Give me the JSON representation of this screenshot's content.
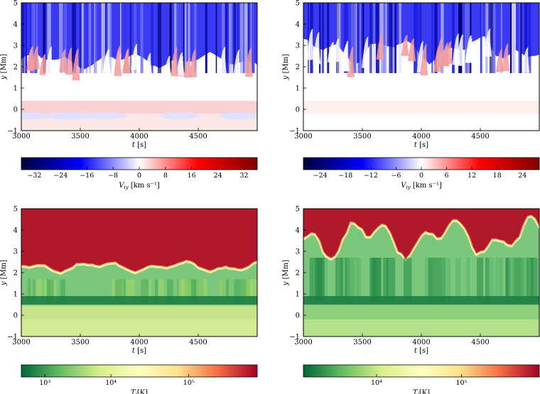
{
  "chart_data": [
    {
      "type": "heatmap",
      "field": "velocity",
      "xlabel": "t [s]",
      "ylabel": "y [Mm]",
      "xlim": [
        3000,
        5000
      ],
      "ylim": [
        -1,
        5
      ],
      "xticks": [
        "3000",
        "3500",
        "4000",
        "4500"
      ],
      "yticks": [
        "−1",
        "0",
        "1",
        "2",
        "3",
        "4",
        "5"
      ],
      "colorbar": {
        "label": "V_iy [km s⁻¹]",
        "range": [
          -36,
          36
        ],
        "ticks": [
          "−32",
          "−24",
          "−16",
          "−8",
          "0",
          "8",
          "16",
          "24",
          "32"
        ],
        "colormap": "seismic",
        "colors": [
          "#00003c",
          "#0000ff",
          "#ffffff",
          "#ff0000",
          "#7f0000"
        ]
      },
      "interface_height_mm": 2.3,
      "interface_variation_mm": 0.35
    },
    {
      "type": "heatmap",
      "field": "velocity",
      "xlabel": "t [s]",
      "ylabel": "y [Mm]",
      "xlim": [
        3000,
        5000
      ],
      "ylim": [
        -1,
        5
      ],
      "xticks": [
        "3000",
        "3500",
        "4000",
        "4500"
      ],
      "yticks": [
        "−1",
        "0",
        "1",
        "2",
        "3",
        "4",
        "5"
      ],
      "colorbar": {
        "label": "V_iy [km s⁻¹]",
        "range": [
          -28,
          28
        ],
        "ticks": [
          "−24",
          "−18",
          "−12",
          "−6",
          "0",
          "6",
          "12",
          "18",
          "24"
        ],
        "colormap": "seismic",
        "colors": [
          "#00003c",
          "#0000ff",
          "#ffffff",
          "#ff0000",
          "#7f0000"
        ]
      },
      "interface_height_mm": 2.8,
      "interface_variation_mm": 0.6
    },
    {
      "type": "heatmap",
      "field": "temperature",
      "xlabel": "t [s]",
      "ylabel": "y [Mm]",
      "xlim": [
        3000,
        5000
      ],
      "ylim": [
        -1,
        5
      ],
      "xticks": [
        "3000",
        "3500",
        "4000",
        "4500"
      ],
      "yticks": [
        "−1",
        "0",
        "1",
        "2",
        "3",
        "4",
        "5"
      ],
      "colorbar": {
        "label": "T_i[K]",
        "scale": "log",
        "ticks": [
          "10³",
          "10⁴",
          "10⁵"
        ],
        "colormap": "RdYlGn_r",
        "colors": [
          "#006837",
          "#66bd63",
          "#d9ef8b",
          "#ffffbf",
          "#fee08b",
          "#f46d43",
          "#a50026"
        ]
      },
      "interface_height_mm": 2.25,
      "interface_variation_mm": 0.25
    },
    {
      "type": "heatmap",
      "field": "temperature",
      "xlabel": "t [s]",
      "ylabel": "y [Mm]",
      "xlim": [
        3000,
        5000
      ],
      "ylim": [
        -1,
        5
      ],
      "xticks": [
        "3000",
        "3500",
        "4000",
        "4500"
      ],
      "yticks": [
        "−1",
        "0",
        "1",
        "2",
        "3",
        "4",
        "5"
      ],
      "colorbar": {
        "label": "T_i[K]",
        "scale": "log",
        "ticks": [
          "10⁴",
          "10⁵"
        ],
        "colormap": "RdYlGn_r",
        "colors": [
          "#006837",
          "#66bd63",
          "#d9ef8b",
          "#ffffbf",
          "#fee08b",
          "#f46d43",
          "#a50026"
        ]
      },
      "interface_height_mm": 3.6,
      "interface_variation_mm": 0.9
    }
  ]
}
